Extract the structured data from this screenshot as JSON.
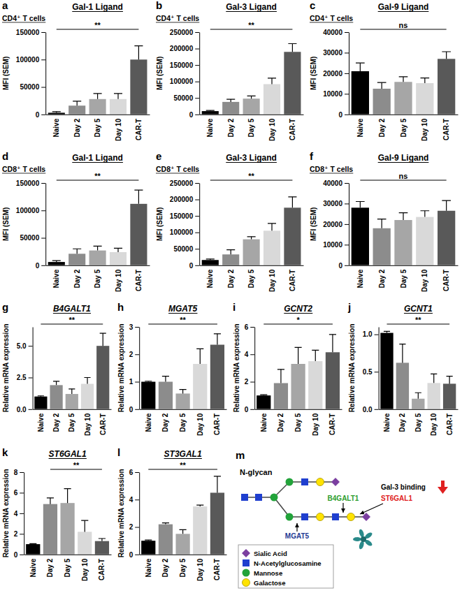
{
  "chart_data": [
    {
      "type": "bar",
      "panel": "a",
      "title": "Gal-1 Ligand",
      "subtitle": "CD4⁺ T cells",
      "ylabel": "MFI (SEM)",
      "categories": [
        "Naive",
        "Day 2",
        "Day 5",
        "Day 10",
        "CAR-T"
      ],
      "values": [
        3000,
        16000,
        28000,
        28000,
        100000
      ],
      "errors": [
        2000,
        8000,
        10000,
        10000,
        25000
      ],
      "colors": [
        "#000000",
        "#8c8c8c",
        "#a6a6a6",
        "#d9d9d9",
        "#595959"
      ],
      "ylim": [
        0,
        150000
      ],
      "yticks": [
        0,
        50000,
        100000,
        150000
      ],
      "annotation": {
        "text": "**",
        "from": "Naive",
        "to": "CAR-T"
      }
    },
    {
      "type": "bar",
      "panel": "b",
      "title": "Gal-3 Ligand",
      "subtitle": "CD4⁺ T cells",
      "ylabel": "MFI (SEM)",
      "categories": [
        "Naive",
        "Day 2",
        "Day 5",
        "Day 10",
        "CAR-T"
      ],
      "values": [
        10000,
        38000,
        48000,
        92000,
        190000
      ],
      "errors": [
        2000,
        8000,
        8000,
        18000,
        25000
      ],
      "colors": [
        "#000000",
        "#8c8c8c",
        "#a6a6a6",
        "#d9d9d9",
        "#595959"
      ],
      "ylim": [
        0,
        250000
      ],
      "yticks": [
        0,
        50000,
        100000,
        150000,
        200000,
        250000
      ],
      "annotation": {
        "text": "**",
        "from": "Naive",
        "to": "CAR-T"
      }
    },
    {
      "type": "bar",
      "panel": "c",
      "title": "Gal-9 Ligand",
      "subtitle": "CD4⁺ T cells",
      "ylabel": "MFI (SEM)",
      "categories": [
        "Naive",
        "Day 2",
        "Day 5",
        "Day 10",
        "CAR-T"
      ],
      "values": [
        21000,
        12500,
        15800,
        15200,
        27000
      ],
      "errors": [
        4000,
        3000,
        2500,
        2500,
        3500
      ],
      "colors": [
        "#000000",
        "#8c8c8c",
        "#a6a6a6",
        "#d9d9d9",
        "#595959"
      ],
      "ylim": [
        0,
        40000
      ],
      "yticks": [
        0,
        10000,
        20000,
        30000,
        40000
      ],
      "annotation": {
        "text": "ns",
        "from": "Naive",
        "to": "CAR-T"
      }
    },
    {
      "type": "bar",
      "panel": "d",
      "title": "Gal-1 Ligand",
      "subtitle": "CD8⁺ T cells",
      "ylabel": "MFI (SEM)",
      "categories": [
        "Naive",
        "Day 2",
        "Day 5",
        "Day 10",
        "CAR-T"
      ],
      "values": [
        6000,
        21000,
        27000,
        24000,
        112000
      ],
      "errors": [
        2500,
        9000,
        8000,
        7000,
        25000
      ],
      "colors": [
        "#000000",
        "#8c8c8c",
        "#a6a6a6",
        "#d9d9d9",
        "#595959"
      ],
      "ylim": [
        0,
        150000
      ],
      "yticks": [
        0,
        50000,
        100000,
        150000
      ],
      "annotation": {
        "text": "**",
        "from": "Naive",
        "to": "CAR-T"
      }
    },
    {
      "type": "bar",
      "panel": "e",
      "title": "Gal-3 Ligand",
      "subtitle": "CD8⁺ T cells",
      "ylabel": "MFI (SEM)",
      "categories": [
        "Naive",
        "Day 2",
        "Day 5",
        "Day 10",
        "CAR-T"
      ],
      "values": [
        16000,
        33000,
        79000,
        105000,
        175000
      ],
      "errors": [
        3000,
        14000,
        8000,
        22000,
        33000
      ],
      "colors": [
        "#000000",
        "#8c8c8c",
        "#a6a6a6",
        "#d9d9d9",
        "#595959"
      ],
      "ylim": [
        0,
        250000
      ],
      "yticks": [
        0,
        50000,
        100000,
        150000,
        200000,
        250000
      ],
      "annotation": {
        "text": "**",
        "from": "Naive",
        "to": "CAR-T"
      }
    },
    {
      "type": "bar",
      "panel": "f",
      "title": "Gal-9 Ligand",
      "subtitle": "CD8⁺ T cells",
      "ylabel": "MFI (SEM)",
      "categories": [
        "Naive",
        "Day 2",
        "Day 5",
        "Day 10",
        "CAR-T"
      ],
      "values": [
        28000,
        18000,
        22000,
        23500,
        26500
      ],
      "errors": [
        3000,
        4500,
        3500,
        3000,
        5000
      ],
      "colors": [
        "#000000",
        "#8c8c8c",
        "#a6a6a6",
        "#d9d9d9",
        "#595959"
      ],
      "ylim": [
        0,
        40000
      ],
      "yticks": [
        0,
        10000,
        20000,
        30000,
        40000
      ],
      "annotation": {
        "text": "ns",
        "from": "Naive",
        "to": "CAR-T"
      }
    },
    {
      "type": "bar",
      "panel": "g",
      "title": "B4GALT1",
      "ylabel": "Relative mRNA expression",
      "categories": [
        "Naive",
        "Day 2",
        "Day 5",
        "Day 10",
        "CAR-T"
      ],
      "values": [
        1,
        1.9,
        1.2,
        2.0,
        5.0
      ],
      "errors": [
        0.05,
        0.3,
        0.4,
        0.5,
        1.0
      ],
      "colors": [
        "#000000",
        "#8c8c8c",
        "#a6a6a6",
        "#d9d9d9",
        "#595959"
      ],
      "ylim": [
        0,
        6.5
      ],
      "yticks": [
        {
          "value": 0,
          "label": "0.0"
        },
        2.5,
        {
          "value": 5,
          "label": "5.0"
        }
      ],
      "annotation": {
        "text": "**",
        "from": "Naive",
        "to": "CAR-T"
      }
    },
    {
      "type": "bar",
      "panel": "h",
      "title": "MGAT5",
      "ylabel": "Relative mRNA expression",
      "categories": [
        "Naive",
        "Day 2",
        "Day 5",
        "Day 10",
        "CAR-T"
      ],
      "values": [
        1,
        1.0,
        0.57,
        1.65,
        2.35
      ],
      "errors": [
        0.02,
        0.2,
        0.15,
        0.55,
        0.4
      ],
      "colors": [
        "#000000",
        "#8c8c8c",
        "#a6a6a6",
        "#d9d9d9",
        "#595959"
      ],
      "ylim": [
        0,
        3
      ],
      "yticks": [
        0,
        1,
        2,
        3
      ],
      "annotation": {
        "text": "**",
        "from": "Naive",
        "to": "CAR-T"
      }
    },
    {
      "type": "bar",
      "panel": "i",
      "title": "GCNT2",
      "ylabel": "Relative mRNA expression",
      "categories": [
        "Naive",
        "Day 2",
        "Day 5",
        "Day 10",
        "CAR-T"
      ],
      "values": [
        1,
        1.9,
        3.3,
        3.5,
        4.15
      ],
      "errors": [
        0.05,
        1.0,
        1.2,
        0.8,
        1.3
      ],
      "colors": [
        "#000000",
        "#8c8c8c",
        "#a6a6a6",
        "#d9d9d9",
        "#595959"
      ],
      "ylim": [
        0,
        6
      ],
      "yticks": [
        0,
        2,
        4,
        6
      ],
      "annotation": {
        "text": "*",
        "from": "Naive",
        "to": "CAR-T"
      }
    },
    {
      "type": "bar",
      "panel": "j",
      "title": "GCNT1",
      "ylabel": "Relative mRNA expression",
      "categories": [
        "Naive",
        "Day 2",
        "Day 5",
        "Day 10",
        "CAR-T"
      ],
      "values": [
        1.02,
        0.62,
        0.14,
        0.35,
        0.34
      ],
      "errors": [
        0.02,
        0.25,
        0.08,
        0.12,
        0.1
      ],
      "colors": [
        "#000000",
        "#8c8c8c",
        "#a6a6a6",
        "#d9d9d9",
        "#595959"
      ],
      "ylim": [
        0,
        1.1
      ],
      "yticks": [
        {
          "value": 0,
          "label": "0.0"
        },
        0.5,
        {
          "value": 1,
          "label": "1.0"
        }
      ],
      "annotation": {
        "text": "**",
        "from": "Naive",
        "to": "CAR-T"
      }
    },
    {
      "type": "bar",
      "panel": "k",
      "title": "ST6GAL1",
      "ylabel": "Relative mRNA expression",
      "categories": [
        "Naive",
        "Day 2",
        "Day 5",
        "Day 10",
        "CAR-T"
      ],
      "values": [
        1,
        4.9,
        5.0,
        2.2,
        1.3
      ],
      "errors": [
        0.05,
        0.6,
        1.4,
        1.1,
        0.25
      ],
      "colors": [
        "#000000",
        "#8c8c8c",
        "#a6a6a6",
        "#d9d9d9",
        "#595959"
      ],
      "ylim": [
        0,
        8
      ],
      "yticks": [
        0,
        2,
        4,
        6,
        8
      ],
      "annotation": {
        "text": "**",
        "from": "Day 2",
        "to": "CAR-T"
      }
    },
    {
      "type": "bar",
      "panel": "l",
      "title": "ST3GAL1",
      "ylabel": "Relative mRNA expression",
      "categories": [
        "Naive",
        "Day 2",
        "Day 5",
        "Day 10",
        "CAR-T"
      ],
      "values": [
        1,
        2.2,
        1.5,
        3.5,
        4.5
      ],
      "errors": [
        0.05,
        0.1,
        0.3,
        0.1,
        1.2
      ],
      "colors": [
        "#000000",
        "#8c8c8c",
        "#a6a6a6",
        "#d9d9d9",
        "#595959"
      ],
      "ylim": [
        0,
        6
      ],
      "yticks": [
        0,
        2,
        4,
        6
      ],
      "annotation": {
        "text": "**",
        "from": "Naive",
        "to": "CAR-T"
      }
    }
  ],
  "diagram": {
    "panel": "m",
    "title": "N-glycan",
    "annotation": "Gal-3 binding",
    "enzymes": [
      "MGAT5",
      "B4GALT1",
      "ST6GAL1"
    ],
    "legend_items": [
      "Sialic Acid",
      "N-Acetylglucosamine",
      "Mannose",
      "Galactose"
    ]
  }
}
